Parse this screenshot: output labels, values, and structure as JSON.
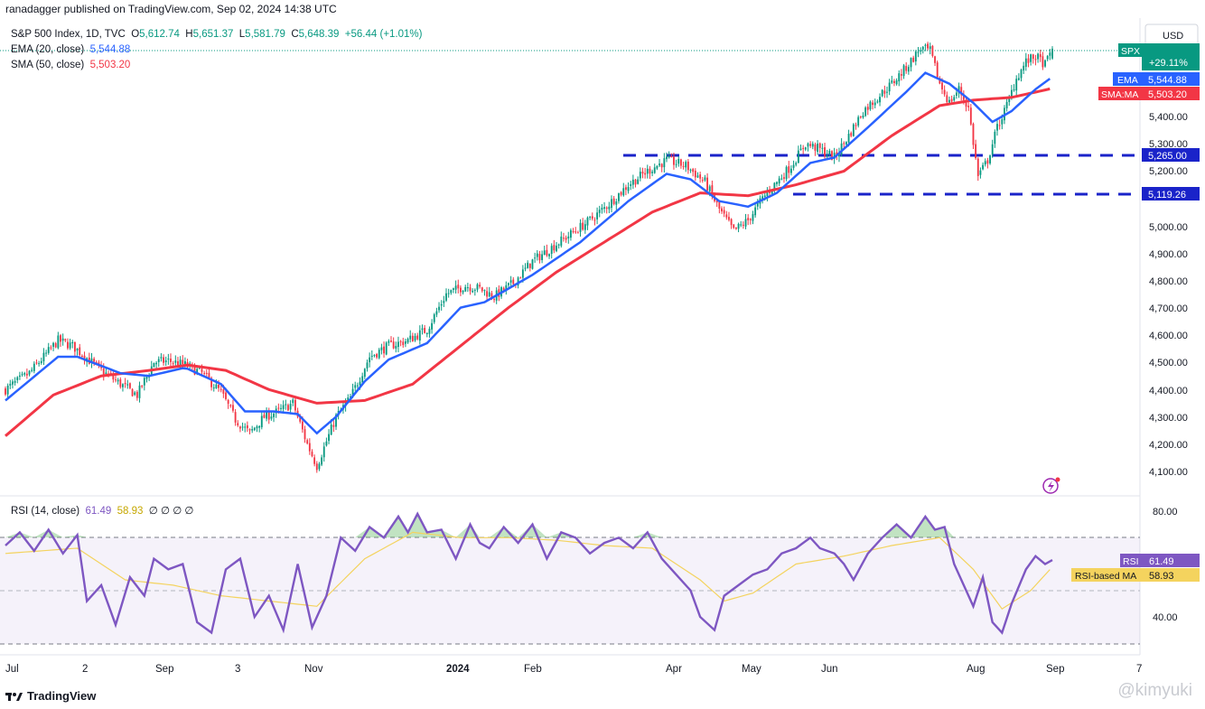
{
  "header": {
    "publisher": "ranadagger published on TradingView.com, Sep 02, 2024 14:38 UTC"
  },
  "legend": {
    "symbol": "S&P 500 Index, 1D, TVC",
    "ohlc": {
      "o_label": "O",
      "o": "5,612.74",
      "h_label": "H",
      "h": "5,651.37",
      "l_label": "L",
      "l": "5,581.79",
      "c_label": "C",
      "c": "5,648.39",
      "change": "+56.44 (+1.01%)"
    },
    "ema_label": "EMA (20, close)",
    "ema_value": "5,544.88",
    "sma_label": "SMA (50, close)",
    "sma_value": "5,503.20"
  },
  "price_axis": {
    "currency": "USD",
    "ticks": [
      "5,400.00",
      "5,300.00",
      "5,200.00",
      "5,000.00",
      "4,900.00",
      "4,800.00",
      "4,700.00",
      "4,600.00",
      "4,500.00",
      "4,400.00",
      "4,300.00",
      "4,200.00",
      "4,100.00"
    ],
    "tags": {
      "spx_label": "SPX",
      "spx_change": "+29.11%",
      "ema_label": "EMA",
      "ema_value": "5,544.88",
      "sma_label": "SMA:MA",
      "sma_value": "5,503.20",
      "level1": "5,265.00",
      "level2": "5,119.26"
    }
  },
  "rsi": {
    "legend_label": "RSI (14, close)",
    "rsi_value": "61.49",
    "ma_value": "58.93",
    "extra": "∅ ∅ ∅ ∅",
    "ticks": [
      "80.00",
      "40.00"
    ],
    "tag_rsi_label": "RSI",
    "tag_rsi_value": "61.49",
    "tag_ma_label": "RSI-based MA",
    "tag_ma_value": "58.93"
  },
  "time_axis": {
    "labels": [
      "Jul",
      "2",
      "Sep",
      "3",
      "Nov",
      "2024",
      "Feb",
      "Apr",
      "May",
      "Jun",
      "Aug",
      "Sep",
      "7"
    ]
  },
  "footer": {
    "brand": "TradingView",
    "watermark": "@kimyuki"
  },
  "colors": {
    "up": "#089981",
    "down": "#f23645",
    "ema": "#2962ff",
    "sma": "#f23645",
    "rsi": "#7e57c2",
    "rsi_ma": "#f4d35e",
    "level_line": "#1a23c9"
  },
  "chart_data": {
    "type": "candlestick",
    "symbol": "SPX",
    "interval": "1D",
    "price_range": [
      4060,
      5700
    ],
    "support_levels": [
      5265.0,
      5119.26
    ],
    "last": {
      "open": 5612.74,
      "high": 5651.37,
      "low": 5581.79,
      "close": 5648.39,
      "change": 56.44,
      "change_pct": 1.01
    },
    "close_path": [
      [
        0,
        4400
      ],
      [
        10,
        4460
      ],
      [
        22,
        4580
      ],
      [
        28,
        4560
      ],
      [
        40,
        4470
      ],
      [
        48,
        4420
      ],
      [
        55,
        4380
      ],
      [
        62,
        4500
      ],
      [
        68,
        4505
      ],
      [
        75,
        4490
      ],
      [
        82,
        4460
      ],
      [
        90,
        4390
      ],
      [
        96,
        4290
      ],
      [
        102,
        4240
      ],
      [
        108,
        4300
      ],
      [
        114,
        4320
      ],
      [
        120,
        4350
      ],
      [
        126,
        4200
      ],
      [
        130,
        4120
      ],
      [
        138,
        4300
      ],
      [
        144,
        4370
      ],
      [
        152,
        4520
      ],
      [
        160,
        4560
      ],
      [
        168,
        4580
      ],
      [
        176,
        4620
      ],
      [
        184,
        4750
      ],
      [
        192,
        4780
      ],
      [
        198,
        4770
      ],
      [
        204,
        4740
      ],
      [
        212,
        4790
      ],
      [
        220,
        4870
      ],
      [
        228,
        4920
      ],
      [
        236,
        4970
      ],
      [
        244,
        5020
      ],
      [
        252,
        5080
      ],
      [
        260,
        5150
      ],
      [
        268,
        5200
      ],
      [
        276,
        5240
      ],
      [
        284,
        5220
      ],
      [
        292,
        5160
      ],
      [
        298,
        5060
      ],
      [
        304,
        4980
      ],
      [
        310,
        5020
      ],
      [
        316,
        5100
      ],
      [
        322,
        5160
      ],
      [
        328,
        5220
      ],
      [
        334,
        5300
      ],
      [
        340,
        5280
      ],
      [
        346,
        5250
      ],
      [
        352,
        5330
      ],
      [
        358,
        5420
      ],
      [
        364,
        5470
      ],
      [
        370,
        5520
      ],
      [
        376,
        5580
      ],
      [
        382,
        5650
      ],
      [
        386,
        5640
      ],
      [
        390,
        5520
      ],
      [
        394,
        5450
      ],
      [
        398,
        5500
      ],
      [
        402,
        5430
      ],
      [
        406,
        5180
      ],
      [
        410,
        5240
      ],
      [
        414,
        5360
      ],
      [
        418,
        5440
      ],
      [
        422,
        5540
      ],
      [
        426,
        5600
      ],
      [
        430,
        5620
      ],
      [
        434,
        5590
      ],
      [
        437,
        5648
      ]
    ],
    "ema20_path": [
      [
        0,
        4360
      ],
      [
        22,
        4520
      ],
      [
        30,
        4520
      ],
      [
        48,
        4460
      ],
      [
        60,
        4450
      ],
      [
        75,
        4480
      ],
      [
        90,
        4420
      ],
      [
        100,
        4320
      ],
      [
        112,
        4320
      ],
      [
        122,
        4310
      ],
      [
        130,
        4240
      ],
      [
        138,
        4300
      ],
      [
        150,
        4430
      ],
      [
        160,
        4510
      ],
      [
        176,
        4570
      ],
      [
        190,
        4700
      ],
      [
        200,
        4720
      ],
      [
        220,
        4820
      ],
      [
        240,
        4940
      ],
      [
        260,
        5090
      ],
      [
        276,
        5190
      ],
      [
        286,
        5170
      ],
      [
        298,
        5090
      ],
      [
        310,
        5070
      ],
      [
        322,
        5120
      ],
      [
        336,
        5230
      ],
      [
        346,
        5250
      ],
      [
        360,
        5360
      ],
      [
        376,
        5490
      ],
      [
        384,
        5560
      ],
      [
        394,
        5520
      ],
      [
        404,
        5450
      ],
      [
        412,
        5380
      ],
      [
        420,
        5420
      ],
      [
        430,
        5500
      ],
      [
        437,
        5545
      ]
    ],
    "sma50_path": [
      [
        0,
        4230
      ],
      [
        20,
        4380
      ],
      [
        40,
        4450
      ],
      [
        60,
        4470
      ],
      [
        76,
        4490
      ],
      [
        92,
        4470
      ],
      [
        110,
        4400
      ],
      [
        130,
        4350
      ],
      [
        150,
        4360
      ],
      [
        170,
        4420
      ],
      [
        190,
        4560
      ],
      [
        210,
        4700
      ],
      [
        230,
        4830
      ],
      [
        250,
        4940
      ],
      [
        270,
        5050
      ],
      [
        290,
        5120
      ],
      [
        310,
        5110
      ],
      [
        330,
        5150
      ],
      [
        350,
        5200
      ],
      [
        370,
        5330
      ],
      [
        390,
        5440
      ],
      [
        404,
        5460
      ],
      [
        420,
        5470
      ],
      [
        437,
        5503
      ]
    ],
    "rsi_path": [
      [
        0,
        67
      ],
      [
        6,
        72
      ],
      [
        12,
        65
      ],
      [
        18,
        73
      ],
      [
        24,
        64
      ],
      [
        30,
        71
      ],
      [
        34,
        46
      ],
      [
        40,
        52
      ],
      [
        46,
        37
      ],
      [
        52,
        55
      ],
      [
        58,
        48
      ],
      [
        62,
        62
      ],
      [
        68,
        58
      ],
      [
        74,
        60
      ],
      [
        80,
        38
      ],
      [
        86,
        34
      ],
      [
        92,
        58
      ],
      [
        98,
        62
      ],
      [
        104,
        40
      ],
      [
        110,
        48
      ],
      [
        116,
        35
      ],
      [
        122,
        60
      ],
      [
        128,
        36
      ],
      [
        134,
        48
      ],
      [
        140,
        70
      ],
      [
        146,
        65
      ],
      [
        152,
        74
      ],
      [
        158,
        70
      ],
      [
        164,
        78
      ],
      [
        168,
        72
      ],
      [
        172,
        79
      ],
      [
        176,
        72
      ],
      [
        182,
        73
      ],
      [
        188,
        62
      ],
      [
        194,
        75
      ],
      [
        198,
        68
      ],
      [
        202,
        66
      ],
      [
        208,
        74
      ],
      [
        214,
        68
      ],
      [
        220,
        75
      ],
      [
        226,
        62
      ],
      [
        232,
        72
      ],
      [
        238,
        70
      ],
      [
        244,
        64
      ],
      [
        250,
        68
      ],
      [
        256,
        70
      ],
      [
        262,
        66
      ],
      [
        268,
        72
      ],
      [
        274,
        62
      ],
      [
        280,
        56
      ],
      [
        286,
        50
      ],
      [
        290,
        40
      ],
      [
        296,
        35
      ],
      [
        300,
        48
      ],
      [
        306,
        52
      ],
      [
        312,
        56
      ],
      [
        318,
        58
      ],
      [
        324,
        64
      ],
      [
        330,
        66
      ],
      [
        336,
        70
      ],
      [
        340,
        66
      ],
      [
        346,
        64
      ],
      [
        350,
        60
      ],
      [
        354,
        54
      ],
      [
        360,
        64
      ],
      [
        366,
        70
      ],
      [
        372,
        75
      ],
      [
        378,
        70
      ],
      [
        384,
        78
      ],
      [
        388,
        73
      ],
      [
        392,
        74
      ],
      [
        396,
        60
      ],
      [
        400,
        52
      ],
      [
        404,
        44
      ],
      [
        408,
        55
      ],
      [
        412,
        38
      ],
      [
        416,
        34
      ],
      [
        420,
        45
      ],
      [
        426,
        58
      ],
      [
        430,
        63
      ],
      [
        434,
        60
      ],
      [
        437,
        61.5
      ]
    ],
    "rsi_ma_path": [
      [
        0,
        64
      ],
      [
        30,
        66
      ],
      [
        50,
        54
      ],
      [
        70,
        52
      ],
      [
        90,
        48
      ],
      [
        110,
        46
      ],
      [
        130,
        44
      ],
      [
        150,
        62
      ],
      [
        170,
        72
      ],
      [
        190,
        70
      ],
      [
        210,
        70
      ],
      [
        230,
        69
      ],
      [
        250,
        67
      ],
      [
        270,
        66
      ],
      [
        290,
        54
      ],
      [
        300,
        46
      ],
      [
        312,
        49
      ],
      [
        330,
        60
      ],
      [
        350,
        63
      ],
      [
        370,
        67
      ],
      [
        390,
        70
      ],
      [
        404,
        58
      ],
      [
        416,
        43
      ],
      [
        428,
        50
      ],
      [
        437,
        58.9
      ]
    ],
    "rsi_range": [
      30,
      85
    ],
    "rsi_bands": [
      70,
      30,
      50
    ],
    "bars": 438
  }
}
